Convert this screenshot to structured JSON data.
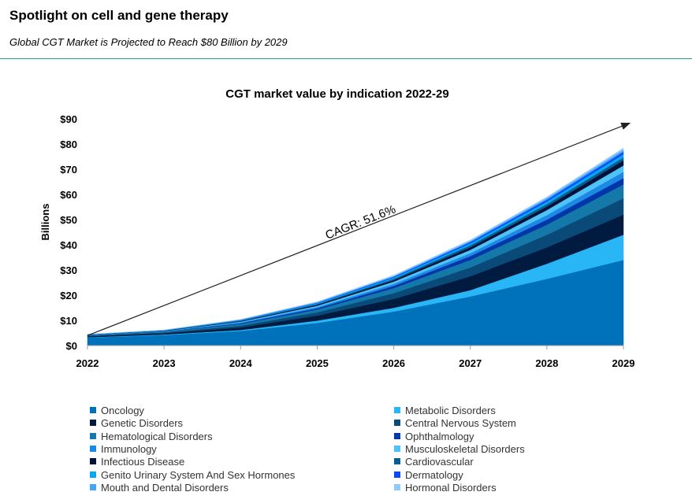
{
  "header": {
    "title": "Spotlight on cell and gene therapy",
    "subtitle": "Global CGT Market is Projected to Reach $80 Billion by 2029"
  },
  "chart_data": {
    "type": "area",
    "stacked": true,
    "title": "CGT market value by indication 2022-29",
    "ylabel": "Billions",
    "xlabel": "",
    "x": [
      "2022",
      "2023",
      "2024",
      "2025",
      "2026",
      "2027",
      "2028",
      "2029"
    ],
    "ylim": [
      0,
      90
    ],
    "yticks": [
      0,
      10,
      20,
      30,
      40,
      50,
      60,
      70,
      80,
      90
    ],
    "ytick_labels": [
      "$0",
      "$10",
      "$20",
      "$30",
      "$40",
      "$50",
      "$60",
      "$70",
      "$80",
      "$90"
    ],
    "grid": false,
    "legend_position": "bottom",
    "annotation": {
      "text": "CAGR: 51.6%",
      "arrow_from": [
        "2022",
        4
      ],
      "arrow_to": [
        "2029",
        88
      ]
    },
    "series": [
      {
        "name": "Oncology",
        "color": "#0072bc",
        "values": [
          3.2,
          4.2,
          5.8,
          9.0,
          13.5,
          19.5,
          26.5,
          34.0
        ]
      },
      {
        "name": "Metabolic Disorders",
        "color": "#29b6f6",
        "values": [
          0.1,
          0.2,
          0.4,
          0.9,
          1.5,
          2.5,
          6.0,
          10.0
        ]
      },
      {
        "name": "Genetic Disorders",
        "color": "#001a40",
        "values": [
          0.4,
          0.5,
          1.0,
          2.0,
          3.5,
          5.5,
          6.5,
          8.0
        ]
      },
      {
        "name": "Central Nervous System",
        "color": "#0a4a78",
        "values": [
          0.2,
          0.3,
          0.7,
          1.3,
          2.3,
          3.5,
          5.0,
          6.5
        ]
      },
      {
        "name": "Hematological Disorders",
        "color": "#1479a8",
        "values": [
          0.2,
          0.3,
          0.7,
          1.1,
          2.0,
          3.0,
          4.0,
          5.5
        ]
      },
      {
        "name": "Ophthalmology",
        "color": "#0037a8",
        "values": [
          0.05,
          0.1,
          0.3,
          0.5,
          0.9,
          1.5,
          2.0,
          2.5
        ]
      },
      {
        "name": "Immunology",
        "color": "#1e88e5",
        "values": [
          0.05,
          0.1,
          0.3,
          0.5,
          0.8,
          1.2,
          1.8,
          2.5
        ]
      },
      {
        "name": "Musculoskeletal Disorders",
        "color": "#4fc3f7",
        "values": [
          0.05,
          0.1,
          0.3,
          0.5,
          0.9,
          1.3,
          2.0,
          2.5
        ]
      },
      {
        "name": "Infectious Disease",
        "color": "#00123a",
        "values": [
          0.05,
          0.1,
          0.2,
          0.4,
          0.6,
          1.0,
          1.4,
          2.0
        ]
      },
      {
        "name": "Cardiovascular",
        "color": "#0b5c8c",
        "values": [
          0.05,
          0.1,
          0.2,
          0.3,
          0.5,
          0.8,
          1.0,
          1.2
        ]
      },
      {
        "name": "Genito Urinary System And Sex Hormones",
        "color": "#03a9f4",
        "values": [
          0.05,
          0.05,
          0.2,
          0.3,
          0.5,
          0.8,
          1.0,
          1.3
        ]
      },
      {
        "name": "Dermatology",
        "color": "#0d47ff",
        "values": [
          0.03,
          0.05,
          0.1,
          0.2,
          0.3,
          0.5,
          0.7,
          0.9
        ]
      },
      {
        "name": "Mouth and Dental Disorders",
        "color": "#42a5f5",
        "values": [
          0.03,
          0.05,
          0.1,
          0.2,
          0.3,
          0.4,
          0.6,
          0.8
        ]
      },
      {
        "name": "Hormonal Disorders",
        "color": "#90caf9",
        "values": [
          0.02,
          0.05,
          0.1,
          0.2,
          0.3,
          0.4,
          0.5,
          0.7
        ]
      }
    ]
  }
}
